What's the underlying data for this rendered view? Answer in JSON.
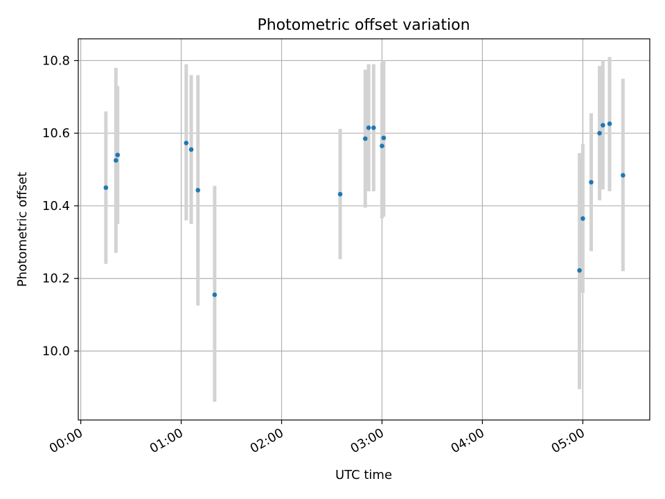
{
  "chart_data": {
    "type": "scatter",
    "title": "Photometric offset variation",
    "xlabel": "UTC time",
    "ylabel": "Photometric offset",
    "x_unit": "UTC time (HH:MM)",
    "xlim": [
      "00:00",
      "05:40"
    ],
    "ylim": [
      9.81,
      10.86
    ],
    "x_ticks": [
      "00:00",
      "01:00",
      "02:00",
      "03:00",
      "04:00",
      "05:00"
    ],
    "y_ticks": [
      "10.0",
      "10.2",
      "10.4",
      "10.6",
      "10.8"
    ],
    "grid": true,
    "marker_color": "#1f77b4",
    "errorbar_color": "#d3d3d3",
    "points": [
      {
        "x": "00:15",
        "y": 10.45,
        "ylow": 10.24,
        "yhigh": 10.66
      },
      {
        "x": "00:21",
        "y": 10.525,
        "ylow": 10.27,
        "yhigh": 10.78
      },
      {
        "x": "00:22",
        "y": 10.54,
        "ylow": 10.35,
        "yhigh": 10.73
      },
      {
        "x": "01:03",
        "y": 10.573,
        "ylow": 10.36,
        "yhigh": 10.79
      },
      {
        "x": "01:06",
        "y": 10.555,
        "ylow": 10.35,
        "yhigh": 10.76
      },
      {
        "x": "01:10",
        "y": 10.443,
        "ylow": 10.125,
        "yhigh": 10.76
      },
      {
        "x": "01:20",
        "y": 10.155,
        "ylow": 9.86,
        "yhigh": 10.455
      },
      {
        "x": "02:35",
        "y": 10.432,
        "ylow": 10.253,
        "yhigh": 10.612
      },
      {
        "x": "02:50",
        "y": 10.585,
        "ylow": 10.395,
        "yhigh": 10.775
      },
      {
        "x": "02:52",
        "y": 10.615,
        "ylow": 10.44,
        "yhigh": 10.79
      },
      {
        "x": "02:55",
        "y": 10.615,
        "ylow": 10.44,
        "yhigh": 10.79
      },
      {
        "x": "03:00",
        "y": 10.565,
        "ylow": 10.365,
        "yhigh": 10.795
      },
      {
        "x": "03:01",
        "y": 10.587,
        "ylow": 10.37,
        "yhigh": 10.8
      },
      {
        "x": "04:58",
        "y": 10.222,
        "ylow": 9.895,
        "yhigh": 10.545
      },
      {
        "x": "05:00",
        "y": 10.365,
        "ylow": 10.16,
        "yhigh": 10.57
      },
      {
        "x": "05:05",
        "y": 10.465,
        "ylow": 10.275,
        "yhigh": 10.655
      },
      {
        "x": "05:10",
        "y": 10.6,
        "ylow": 10.415,
        "yhigh": 10.785
      },
      {
        "x": "05:12",
        "y": 10.622,
        "ylow": 10.445,
        "yhigh": 10.8
      },
      {
        "x": "05:16",
        "y": 10.626,
        "ylow": 10.44,
        "yhigh": 10.81
      },
      {
        "x": "05:24",
        "y": 10.484,
        "ylow": 10.22,
        "yhigh": 10.75
      }
    ]
  }
}
